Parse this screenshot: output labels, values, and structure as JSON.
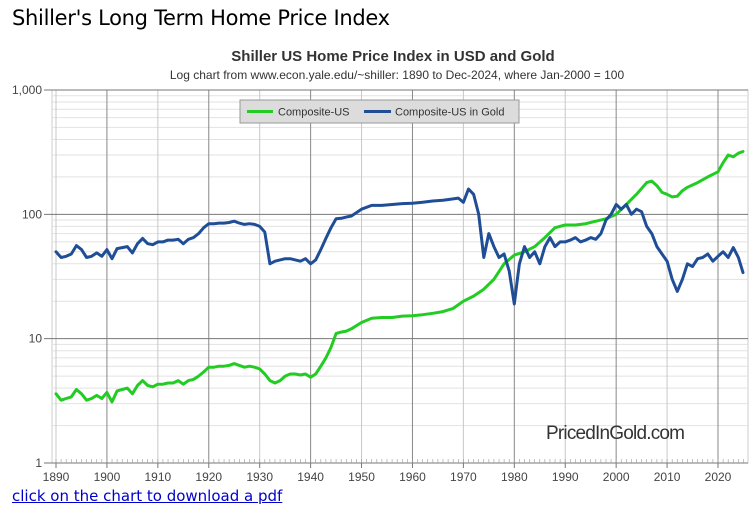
{
  "page": {
    "title": "Shiller's Long Term Home Price Index",
    "link_text": "click on the chart to download a pdf"
  },
  "chart_data": {
    "type": "line",
    "title": "Shiller US Home Price Index in USD and Gold",
    "subtitle": "Log chart from www.econ.yale.edu/~shiller: 1890 to Dec-2024, where Jan-2000 = 100",
    "xlabel": "",
    "ylabel": "",
    "yscale": "log",
    "ylim": [
      1,
      1000
    ],
    "xlim": [
      1890,
      2025
    ],
    "y_ticks": [
      1,
      10,
      100,
      1000
    ],
    "y_tick_labels": [
      "1",
      "10",
      "100",
      "1,000"
    ],
    "x_ticks": [
      1890,
      1900,
      1910,
      1920,
      1930,
      1940,
      1950,
      1960,
      1970,
      1980,
      1990,
      2000,
      2010,
      2020
    ],
    "x_tick_labels": [
      "1890",
      "1900",
      "1910",
      "1920",
      "1930",
      "1940",
      "1950",
      "1960",
      "1970",
      "1980",
      "1990",
      "2000",
      "2010",
      "2020"
    ],
    "grid": true,
    "legend_position": "top-center",
    "watermark": "PricedInGold.com",
    "series": [
      {
        "name": "Composite-US",
        "color": "#22cc22",
        "x": [
          1890,
          1891,
          1892,
          1893,
          1894,
          1895,
          1896,
          1897,
          1898,
          1899,
          1900,
          1901,
          1902,
          1903,
          1904,
          1905,
          1906,
          1907,
          1908,
          1909,
          1910,
          1911,
          1912,
          1913,
          1914,
          1915,
          1916,
          1917,
          1918,
          1919,
          1920,
          1921,
          1922,
          1923,
          1924,
          1925,
          1926,
          1927,
          1928,
          1929,
          1930,
          1931,
          1932,
          1933,
          1934,
          1935,
          1936,
          1937,
          1938,
          1939,
          1940,
          1941,
          1942,
          1943,
          1944,
          1945,
          1946,
          1947,
          1948,
          1950,
          1952,
          1954,
          1956,
          1958,
          1960,
          1962,
          1964,
          1966,
          1968,
          1970,
          1972,
          1974,
          1976,
          1978,
          1980,
          1982,
          1984,
          1986,
          1988,
          1990,
          1992,
          1994,
          1996,
          1998,
          2000,
          2002,
          2004,
          2006,
          2007,
          2008,
          2009,
          2010,
          2011,
          2012,
          2013,
          2014,
          2016,
          2018,
          2020,
          2021,
          2022,
          2023,
          2024,
          2024.9
        ],
        "values": [
          3.6,
          3.2,
          3.3,
          3.4,
          3.9,
          3.6,
          3.2,
          3.3,
          3.5,
          3.3,
          3.7,
          3.1,
          3.8,
          3.9,
          4.0,
          3.6,
          4.2,
          4.6,
          4.2,
          4.1,
          4.3,
          4.3,
          4.4,
          4.4,
          4.6,
          4.3,
          4.6,
          4.7,
          5.0,
          5.4,
          5.9,
          5.9,
          6.0,
          6.0,
          6.1,
          6.3,
          6.1,
          5.9,
          6.0,
          5.9,
          5.7,
          5.2,
          4.6,
          4.4,
          4.6,
          5.0,
          5.2,
          5.2,
          5.1,
          5.2,
          4.9,
          5.2,
          6.0,
          7.0,
          8.5,
          11.0,
          11.3,
          11.5,
          12.0,
          13.5,
          14.6,
          14.8,
          14.8,
          15.2,
          15.3,
          15.6,
          16.0,
          16.5,
          17.5,
          20.0,
          22.0,
          25.0,
          30.0,
          40.0,
          47.0,
          50.0,
          55.0,
          65.0,
          78.0,
          82.0,
          82.0,
          84.0,
          88.0,
          92.0,
          100.0,
          120.0,
          145.0,
          180.0,
          185.0,
          170.0,
          150.0,
          145.0,
          138.0,
          140.0,
          155.0,
          165.0,
          180.0,
          200.0,
          220.0,
          260.0,
          300.0,
          290.0,
          310.0,
          320.0
        ]
      },
      {
        "name": "Composite-US in Gold",
        "color": "#1f4e96",
        "x": [
          1890,
          1891,
          1892,
          1893,
          1894,
          1895,
          1896,
          1897,
          1898,
          1899,
          1900,
          1901,
          1902,
          1903,
          1904,
          1905,
          1906,
          1907,
          1908,
          1909,
          1910,
          1911,
          1912,
          1913,
          1914,
          1915,
          1916,
          1917,
          1918,
          1919,
          1920,
          1921,
          1922,
          1923,
          1924,
          1925,
          1926,
          1927,
          1928,
          1929,
          1930,
          1931,
          1932,
          1933,
          1934,
          1935,
          1936,
          1937,
          1938,
          1939,
          1940,
          1941,
          1942,
          1943,
          1944,
          1945,
          1946,
          1947,
          1948,
          1950,
          1952,
          1954,
          1956,
          1958,
          1960,
          1962,
          1964,
          1966,
          1968,
          1969,
          1970,
          1971,
          1972,
          1973,
          1974,
          1975,
          1976,
          1977,
          1978,
          1979,
          1980,
          1980.5,
          1981,
          1982,
          1983,
          1984,
          1985,
          1986,
          1987,
          1988,
          1989,
          1990,
          1991,
          1992,
          1993,
          1994,
          1995,
          1996,
          1997,
          1998,
          1999,
          2000,
          2001,
          2002,
          2003,
          2004,
          2005,
          2006,
          2007,
          2008,
          2009,
          2010,
          2011,
          2012,
          2013,
          2014,
          2015,
          2016,
          2017,
          2018,
          2019,
          2020,
          2021,
          2022,
          2023,
          2024,
          2024.9
        ],
        "values": [
          50,
          45,
          46,
          48,
          56,
          52,
          45,
          46,
          49,
          46,
          52,
          44,
          53,
          54,
          55,
          49,
          58,
          64,
          58,
          57,
          60,
          60,
          62,
          62,
          63,
          58,
          63,
          65,
          70,
          78,
          84,
          84,
          85,
          85,
          86,
          88,
          85,
          83,
          84,
          83,
          80,
          72,
          40,
          42,
          43,
          44,
          44,
          43,
          42,
          44,
          40,
          43,
          52,
          64,
          78,
          92,
          93,
          95,
          97,
          110,
          118,
          118,
          120,
          122,
          123,
          125,
          128,
          130,
          133,
          135,
          125,
          160,
          145,
          100,
          45,
          70,
          55,
          45,
          48,
          35,
          19,
          28,
          40,
          55,
          45,
          50,
          40,
          55,
          65,
          55,
          60,
          60,
          62,
          65,
          60,
          62,
          65,
          63,
          70,
          90,
          100,
          120,
          110,
          120,
          100,
          110,
          105,
          80,
          70,
          55,
          48,
          42,
          30,
          24,
          30,
          40,
          38,
          44,
          45,
          48,
          42,
          46,
          50,
          45,
          54,
          45,
          34
        ]
      }
    ]
  }
}
